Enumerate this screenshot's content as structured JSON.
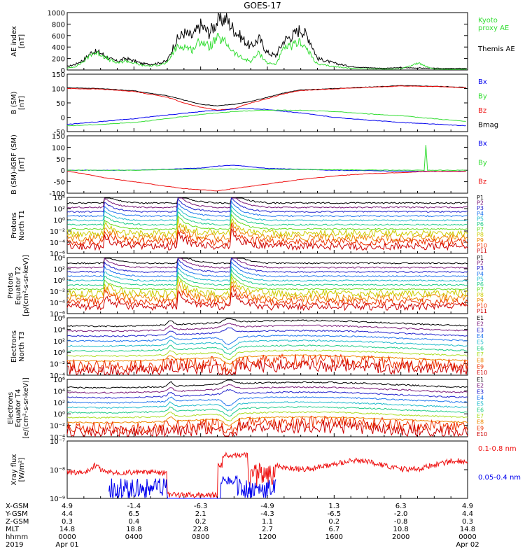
{
  "title": "GOES-17",
  "colors": {
    "black": "#000000",
    "green": "#33dd33",
    "blue": "#0000ee",
    "red": "#ee1111"
  },
  "chart_data": [
    {
      "type": "line",
      "ylabel": "AE index\n[nT]",
      "ylim": [
        0,
        1000
      ],
      "yticks": [
        "0",
        "200",
        "400",
        "600",
        "800",
        "1000"
      ],
      "legend": [
        {
          "label": "Kyoto\nproxy AE",
          "color": "#33dd33"
        },
        {
          "label": "Themis AE",
          "color": "#000000"
        }
      ],
      "series": [
        {
          "name": "Themis AE",
          "color": "#000000",
          "x": [
            0,
            0.5,
            1,
            1.5,
            2,
            2.5,
            3,
            3.5,
            4,
            4.5,
            5,
            5.5,
            6,
            6.5,
            7,
            7.5,
            8,
            8.5,
            9,
            9.5,
            10,
            10.5,
            11,
            11.5,
            12,
            12.5,
            13,
            13.5,
            14,
            14.5,
            15,
            16,
            17,
            18,
            19,
            20,
            21,
            22,
            23,
            24
          ],
          "values": [
            60,
            100,
            180,
            320,
            300,
            200,
            150,
            200,
            160,
            110,
            100,
            120,
            160,
            500,
            650,
            580,
            780,
            650,
            840,
            900,
            700,
            550,
            400,
            550,
            300,
            250,
            520,
            600,
            720,
            550,
            200,
            120,
            60,
            40,
            30,
            40,
            35,
            30,
            25,
            30
          ]
        },
        {
          "name": "Kyoto proxy AE",
          "color": "#33dd33",
          "x": [
            0,
            0.5,
            1,
            1.5,
            2,
            2.5,
            3,
            3.5,
            4,
            4.5,
            5,
            5.5,
            6,
            6.5,
            7,
            7.5,
            8,
            8.5,
            9,
            9.5,
            10,
            10.5,
            11,
            11.5,
            12,
            12.5,
            13,
            13.5,
            14,
            14.5,
            15,
            16,
            17,
            18,
            19,
            20,
            21,
            22,
            23,
            24
          ],
          "values": [
            30,
            60,
            150,
            300,
            280,
            180,
            120,
            160,
            120,
            80,
            70,
            90,
            120,
            380,
            420,
            350,
            520,
            400,
            550,
            480,
            300,
            200,
            150,
            300,
            120,
            100,
            380,
            420,
            500,
            300,
            100,
            60,
            30,
            20,
            15,
            20,
            120,
            15,
            10,
            15
          ]
        }
      ]
    },
    {
      "type": "line",
      "ylabel": "B (SM)\n[nT]",
      "ylim": [
        -50,
        150
      ],
      "yticks": [
        "-50",
        "0",
        "50",
        "100",
        "150"
      ],
      "legend": [
        {
          "label": "Bx",
          "color": "#0000ee"
        },
        {
          "label": "By",
          "color": "#33dd33"
        },
        {
          "label": "Bz",
          "color": "#ee1111"
        },
        {
          "label": "Bmag",
          "color": "#000000"
        }
      ],
      "series": [
        {
          "name": "Bmag",
          "color": "#000000",
          "x": [
            0,
            2,
            4,
            6,
            7,
            8,
            9,
            10,
            11,
            12,
            13,
            14,
            16,
            18,
            20,
            22,
            24
          ],
          "values": [
            103,
            100,
            92,
            75,
            60,
            45,
            40,
            45,
            55,
            70,
            85,
            95,
            100,
            105,
            110,
            108,
            104
          ]
        },
        {
          "name": "Bz",
          "color": "#ee1111",
          "x": [
            0,
            2,
            4,
            6,
            7,
            8,
            9,
            10,
            11,
            12,
            13,
            14,
            16,
            18,
            20,
            22,
            24
          ],
          "values": [
            100,
            98,
            90,
            70,
            50,
            35,
            25,
            30,
            50,
            65,
            82,
            93,
            99,
            104,
            109,
            107,
            103
          ]
        },
        {
          "name": "Bx",
          "color": "#0000ee",
          "x": [
            0,
            2,
            4,
            6,
            8,
            10,
            11,
            12,
            14,
            16,
            18,
            20,
            22,
            24
          ],
          "values": [
            -25,
            -15,
            -5,
            8,
            20,
            28,
            30,
            27,
            15,
            0,
            -10,
            -18,
            -24,
            -30
          ]
        },
        {
          "name": "By",
          "color": "#33dd33",
          "x": [
            0,
            2,
            4,
            6,
            8,
            10,
            12,
            14,
            16,
            18,
            20,
            22,
            24
          ],
          "values": [
            -30,
            -25,
            -18,
            -5,
            10,
            20,
            25,
            24,
            20,
            12,
            5,
            -5,
            -15
          ]
        }
      ]
    },
    {
      "type": "line",
      "ylabel": "B (SM)-IGRF (SM)\n[nT]",
      "ylim": [
        -100,
        150
      ],
      "yticks": [
        "-100",
        "-50",
        "0",
        "50",
        "100",
        "150"
      ],
      "legend": [
        {
          "label": "Bx",
          "color": "#0000ee"
        },
        {
          "label": "By",
          "color": "#33dd33"
        },
        {
          "label": "Bz",
          "color": "#ee1111"
        }
      ],
      "series": [
        {
          "name": "Bx",
          "color": "#0000ee",
          "x": [
            0,
            4,
            6,
            8,
            9,
            10,
            11,
            12,
            14,
            16,
            18,
            20,
            21.5,
            22,
            24
          ],
          "values": [
            0,
            0,
            4,
            10,
            18,
            22,
            15,
            8,
            4,
            0,
            -2,
            -4,
            -5,
            -5,
            -4
          ]
        },
        {
          "name": "By",
          "color": "#33dd33",
          "x": [
            0,
            4,
            6,
            8,
            10,
            12,
            14,
            16,
            18,
            20,
            21.4,
            21.5,
            21.6,
            22,
            24
          ],
          "values": [
            0,
            0,
            3,
            5,
            5,
            4,
            3,
            2,
            1,
            0,
            0,
            110,
            0,
            0,
            0
          ]
        },
        {
          "name": "Bz",
          "color": "#ee1111",
          "x": [
            0,
            1,
            2,
            4,
            6,
            7,
            8,
            9,
            10,
            11,
            12,
            14,
            16,
            18,
            20,
            22,
            24
          ],
          "values": [
            -5,
            -15,
            -30,
            -50,
            -70,
            -80,
            -85,
            -90,
            -80,
            -70,
            -60,
            -40,
            -25,
            -15,
            -10,
            -5,
            -5
          ]
        }
      ]
    },
    {
      "type": "line",
      "yscale": "log",
      "ylabel": "Protons\nNorth T1",
      "yticks": [
        "10⁻⁶",
        "10⁻⁴",
        "10⁻²",
        "10⁰",
        "10²",
        "10⁴"
      ],
      "legend": [
        "P1",
        "P2",
        "P3",
        "P4",
        "P5",
        "P6",
        "P7",
        "P8",
        "P9",
        "P10",
        "P11"
      ],
      "channels": [
        "P1",
        "P2",
        "P3",
        "P4",
        "P5",
        "P6",
        "P7",
        "P8",
        "P9",
        "P10",
        "P11"
      ]
    },
    {
      "type": "line",
      "yscale": "log",
      "ylabel": "Protons\nEquator T2\n[p/(cm²-s-sr-keV)]",
      "yticks": [
        "10⁻⁶",
        "10⁻⁴",
        "10⁻²",
        "10⁰",
        "10²",
        "10⁴"
      ],
      "legend": [
        "P1",
        "P2",
        "P3",
        "P4",
        "P5",
        "P6",
        "P7",
        "P8",
        "P9",
        "P10",
        "P11"
      ],
      "channels": [
        "P1",
        "P2",
        "P3",
        "P4",
        "P5",
        "P6",
        "P7",
        "P8",
        "P9",
        "P10",
        "P11"
      ]
    },
    {
      "type": "line",
      "yscale": "log",
      "ylabel": "Electrons\nNorth T3",
      "yticks": [
        "10⁻⁴",
        "10⁻²",
        "10⁰",
        "10²",
        "10⁴",
        "10⁶"
      ],
      "legend": [
        "E1",
        "E2",
        "E3",
        "E4",
        "E5",
        "E6",
        "E7",
        "E8",
        "E9",
        "E10"
      ],
      "channels": [
        "E1",
        "E2",
        "E3",
        "E4",
        "E5",
        "E6",
        "E7",
        "E8",
        "E9",
        "E10"
      ]
    },
    {
      "type": "line",
      "yscale": "log",
      "ylabel": "Electrons\nEquator T4\n[e/(cm²-s-sr-keV)]",
      "yticks": [
        "10⁻⁴",
        "10⁻²",
        "10⁰",
        "10²",
        "10⁴",
        "10⁶"
      ],
      "legend": [
        "E1",
        "E2",
        "E3",
        "E4",
        "E5",
        "E6",
        "E7",
        "E8",
        "E9",
        "E10"
      ],
      "channels": [
        "E1",
        "E2",
        "E3",
        "E4",
        "E5",
        "E6",
        "E7",
        "E8",
        "E9",
        "E10"
      ]
    },
    {
      "type": "line",
      "yscale": "log",
      "ylabel": "Xray flux\n[W/m²]",
      "yticks": [
        "10⁻⁹",
        "10⁻⁸",
        "10⁻⁷"
      ],
      "legend": [
        {
          "label": "0.1-0.8 nm",
          "color": "#ee1111"
        },
        {
          "label": "0.05-0.4 nm",
          "color": "#0000ee"
        }
      ]
    }
  ],
  "x_axis": {
    "row_labels": [
      "X-GSM",
      "Y-GSM",
      "Z-GSM",
      "MLT",
      "hhmm",
      "2019"
    ],
    "columns": [
      [
        "4.9",
        "4.4",
        "0.3",
        "14.8",
        "0000",
        "Apr 01"
      ],
      [
        "-1.4",
        "6.5",
        "0.4",
        "18.8",
        "0400",
        ""
      ],
      [
        "-6.3",
        "2.1",
        "0.2",
        "22.8",
        "0800",
        ""
      ],
      [
        "-4.9",
        "-4.3",
        "1.1",
        "2.7",
        "1200",
        ""
      ],
      [
        "1.3",
        "-6.5",
        "0.2",
        "6.7",
        "1600",
        ""
      ],
      [
        "6.3",
        "-2.0",
        "-0.8",
        "10.8",
        "2000",
        ""
      ],
      [
        "4.9",
        "4.4",
        "0.3",
        "14.8",
        "0000",
        "Apr 02"
      ]
    ]
  }
}
